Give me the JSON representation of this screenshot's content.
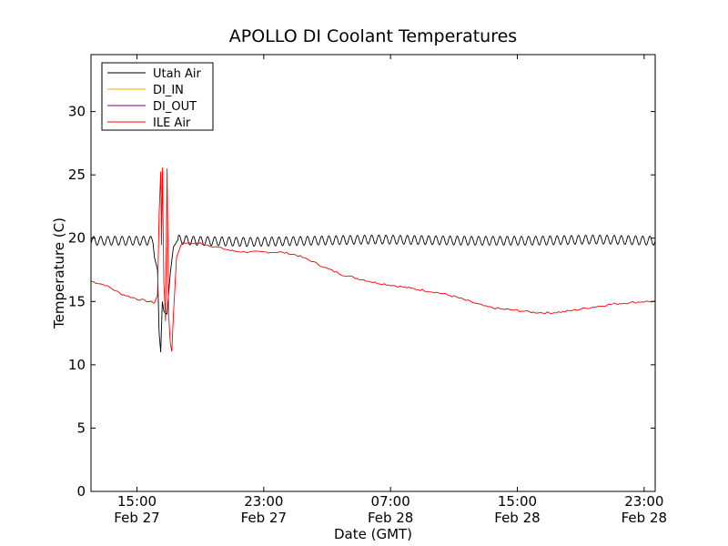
{
  "chart_data": {
    "type": "line",
    "title": "APOLLO DI Coolant Temperatures",
    "xlabel": "Date (GMT)",
    "ylabel": "Temperature (C)",
    "x_unit": "hours since Feb 27 00:00 GMT",
    "xlim": [
      12.1,
      47.7
    ],
    "ylim": [
      0,
      34.5
    ],
    "yticks": [
      0,
      5,
      10,
      15,
      20,
      25,
      30
    ],
    "xticks": [
      {
        "x": 15,
        "time": "15:00",
        "date": "Feb 27"
      },
      {
        "x": 23,
        "time": "23:00",
        "date": "Feb 27"
      },
      {
        "x": 31,
        "time": "07:00",
        "date": "Feb 28"
      },
      {
        "x": 39,
        "time": "15:00",
        "date": "Feb 28"
      },
      {
        "x": 47,
        "time": "23:00",
        "date": "Feb 28"
      }
    ],
    "legend_position": "top-left",
    "series": [
      {
        "name": "Utah Air",
        "color": "#000000",
        "points": [
          [
            12.1,
            19.8
          ],
          [
            16,
            19.8
          ],
          [
            16.1,
            18.5
          ],
          [
            16.3,
            17.5
          ],
          [
            16.4,
            12.5
          ],
          [
            16.5,
            11.0
          ],
          [
            16.6,
            15.0
          ],
          [
            16.7,
            14.2
          ],
          [
            16.9,
            14.0
          ],
          [
            17.1,
            17.2
          ],
          [
            17.3,
            19.3
          ],
          [
            17.6,
            19.9
          ],
          [
            18.5,
            19.8
          ],
          [
            22,
            19.7
          ],
          [
            26,
            19.8
          ],
          [
            30,
            19.9
          ],
          [
            36,
            19.8
          ],
          [
            40,
            19.8
          ],
          [
            44,
            19.9
          ],
          [
            47.7,
            19.8
          ]
        ],
        "oscillation_amplitude": 0.35,
        "oscillation_period_hours": 0.45,
        "oscillation_range": [
          [
            12.1,
            16.0
          ],
          [
            17.6,
            47.7
          ]
        ]
      },
      {
        "name": "DI_IN",
        "color": "#ffaa00",
        "points": []
      },
      {
        "name": "DI_OUT",
        "color": "#800080",
        "points": []
      },
      {
        "name": "ILE Air",
        "color": "#ff0000",
        "points": [
          [
            12.1,
            16.6
          ],
          [
            13,
            16.3
          ],
          [
            14,
            15.6
          ],
          [
            15,
            15.2
          ],
          [
            16.1,
            14.9
          ],
          [
            16.3,
            15.5
          ],
          [
            16.4,
            22.0
          ],
          [
            16.5,
            25.3
          ],
          [
            16.55,
            19.5
          ],
          [
            16.6,
            25.5
          ],
          [
            16.7,
            16.5
          ],
          [
            16.8,
            13.5
          ],
          [
            16.9,
            25.5
          ],
          [
            17.0,
            14.0
          ],
          [
            17.1,
            11.8
          ],
          [
            17.2,
            11.0
          ],
          [
            17.3,
            14.0
          ],
          [
            17.5,
            18.5
          ],
          [
            17.8,
            19.6
          ],
          [
            19,
            19.6
          ],
          [
            20,
            19.3
          ],
          [
            21,
            19.0
          ],
          [
            22,
            18.9
          ],
          [
            23,
            18.9
          ],
          [
            24,
            18.9
          ],
          [
            25,
            18.7
          ],
          [
            26,
            18.2
          ],
          [
            27,
            17.6
          ],
          [
            28,
            17.1
          ],
          [
            29,
            16.8
          ],
          [
            30,
            16.5
          ],
          [
            31,
            16.3
          ],
          [
            32,
            16.1
          ],
          [
            33,
            15.9
          ],
          [
            34,
            15.7
          ],
          [
            35,
            15.4
          ],
          [
            36,
            15.0
          ],
          [
            37,
            14.6
          ],
          [
            38,
            14.4
          ],
          [
            39,
            14.3
          ],
          [
            40,
            14.15
          ],
          [
            41,
            14.1
          ],
          [
            42,
            14.2
          ],
          [
            43,
            14.4
          ],
          [
            44,
            14.6
          ],
          [
            45,
            14.8
          ],
          [
            46,
            14.9
          ],
          [
            47,
            15.0
          ],
          [
            47.7,
            15.0
          ]
        ],
        "jitter": 0.08
      }
    ]
  }
}
